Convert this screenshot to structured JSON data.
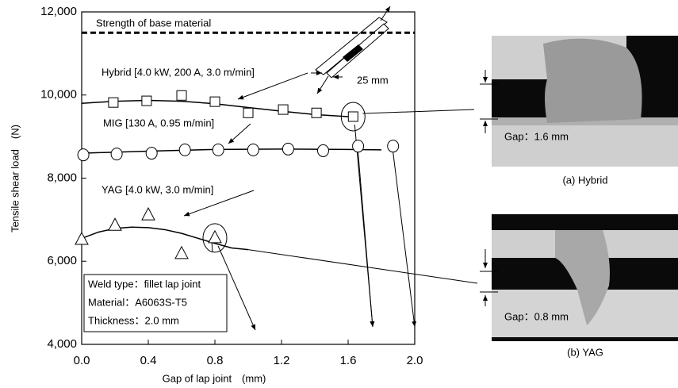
{
  "chart_data": {
    "type": "scatter",
    "x_label": "Gap of lap joint (mm)",
    "y_label": "Tensile shear load (N)",
    "xlim": [
      0,
      2.0
    ],
    "ylim": [
      4000,
      12000
    ],
    "xticks": [
      {
        "value": 0,
        "label": "0.0"
      },
      {
        "value": 0.4,
        "label": "0.4"
      },
      {
        "value": 0.8,
        "label": "0.8"
      },
      {
        "value": 1.2,
        "label": "1.2"
      },
      {
        "value": 1.6,
        "label": "1.6"
      },
      {
        "value": 2.0,
        "label": "2.0"
      }
    ],
    "yticks": [
      {
        "value": 4000,
        "label": "4,000"
      },
      {
        "value": 6000,
        "label": "6,000"
      },
      {
        "value": 8000,
        "label": "8,000"
      },
      {
        "value": 10000,
        "label": "10,000"
      },
      {
        "value": 12000,
        "label": "12,000"
      }
    ],
    "reference_line": {
      "label": "Strength of base material",
      "value": 11500
    },
    "series": [
      {
        "name": "Hybrid [4.0 kW, 200 A, 3.0 m/min]",
        "color": "#000000",
        "marker": "square",
        "highlight": 7,
        "x": [
          0.19,
          0.39,
          0.6,
          0.8,
          1.0,
          1.21,
          1.41,
          1.63
        ],
        "values": [
          9820,
          9860,
          9990,
          9840,
          9570,
          9650,
          9570,
          9480
        ],
        "fit_x": [
          0,
          0.2,
          0.4,
          0.6,
          0.8,
          1.0,
          1.2,
          1.4,
          1.6
        ],
        "fit_values": [
          9800,
          9850,
          9870,
          9850,
          9790,
          9700,
          9610,
          9530,
          9480
        ]
      },
      {
        "name": "MIG [130 A, 0.95 m/min]",
        "color": "#000000",
        "marker": "circle",
        "x": [
          0.01,
          0.21,
          0.42,
          0.62,
          0.82,
          1.03,
          1.24,
          1.45,
          1.66,
          1.87
        ],
        "values": [
          8560,
          8580,
          8600,
          8680,
          8680,
          8680,
          8700,
          8660,
          8770,
          8770
        ],
        "fit_x": [
          0,
          0.4,
          0.8,
          1.2,
          1.6,
          1.8
        ],
        "fit_values": [
          8600,
          8650,
          8690,
          8700,
          8690,
          8680
        ]
      },
      {
        "name": "YAG [4.0 kW, 3.0 m/min]",
        "color": "#000000",
        "marker": "triangle",
        "highlight": 4,
        "x": [
          0.0,
          0.2,
          0.4,
          0.6,
          0.8
        ],
        "values": [
          6520,
          6860,
          7110,
          6180,
          6560
        ],
        "fit_x": [
          0,
          0.1,
          0.2,
          0.3,
          0.4,
          0.5,
          0.6,
          0.7,
          0.8,
          0.9,
          1.0
        ],
        "fit_values": [
          6550,
          6700,
          6790,
          6820,
          6810,
          6760,
          6670,
          6550,
          6430,
          6320,
          6280
        ]
      }
    ],
    "conditions": [
      "Weld type：fillet lap joint",
      "Material：A6063S-T5",
      "Thickness：2.0 mm"
    ],
    "specimen_label": "25 mm",
    "micrographs": [
      {
        "caption": "(a) Hybrid",
        "gap_label": "Gap：1.6 mm"
      },
      {
        "caption": "(b) YAG",
        "gap_label": "Gap：0.8 mm"
      }
    ]
  }
}
